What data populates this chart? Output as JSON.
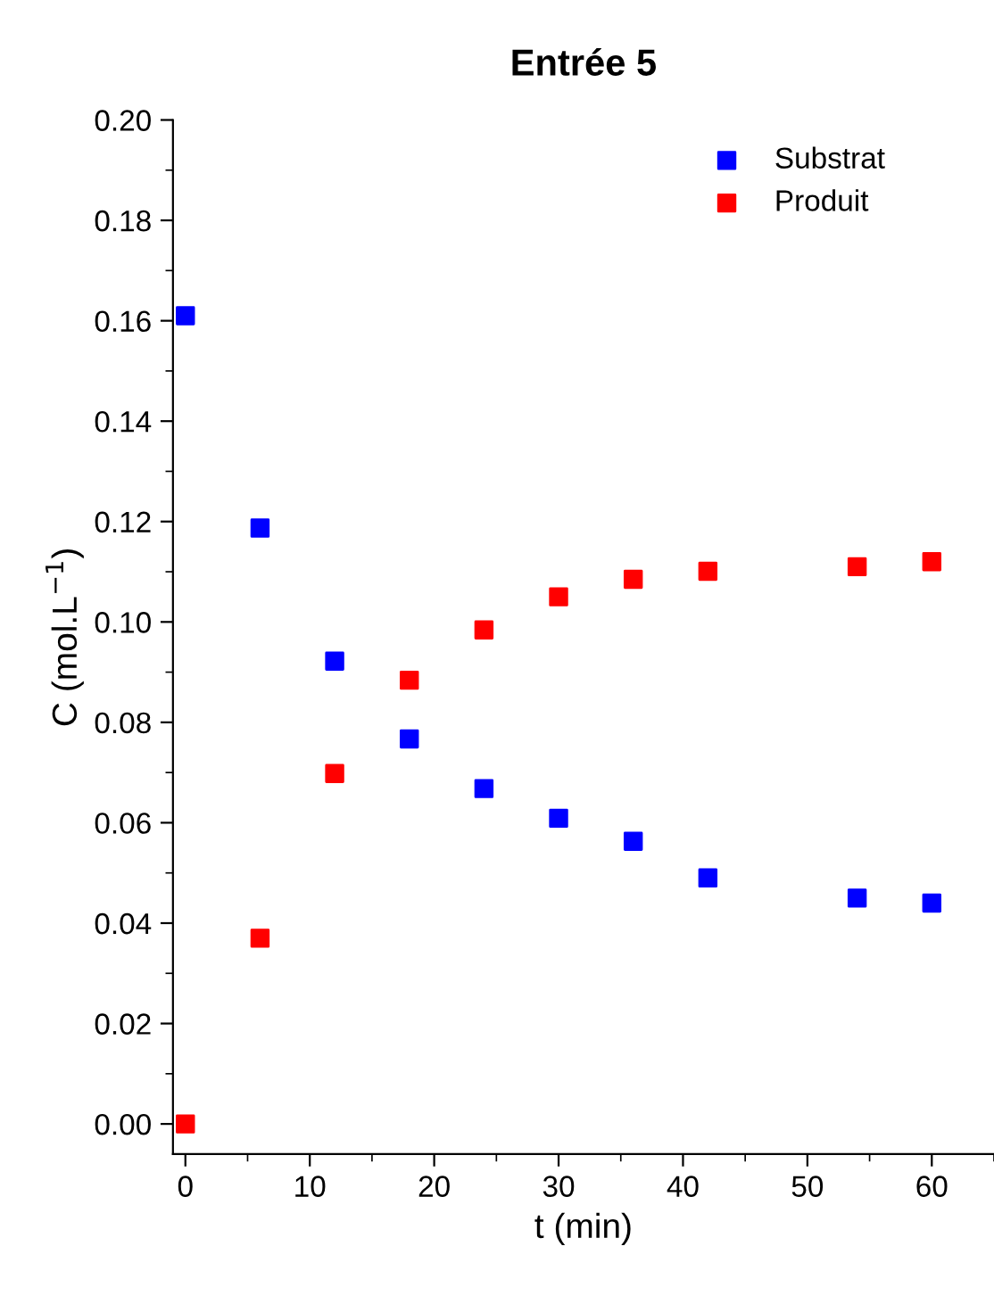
{
  "chart_data": {
    "type": "scatter",
    "title": "Entrée 5",
    "xlabel": "t (min)",
    "ylabel": "C (mol.L$^{−1}$)",
    "x": [
      0,
      6,
      12,
      18,
      24,
      30,
      36,
      42,
      54,
      60
    ],
    "series": [
      {
        "name": "Substrat",
        "color": "#0000ff",
        "values": [
          0.161,
          0.1187,
          0.0922,
          0.0767,
          0.0668,
          0.0609,
          0.0563,
          0.049,
          0.045,
          0.044
        ]
      },
      {
        "name": "Produit",
        "color": "#ff0000",
        "values": [
          0.0,
          0.037,
          0.0698,
          0.0884,
          0.0984,
          0.105,
          0.1085,
          0.1101,
          0.111,
          0.112
        ]
      }
    ],
    "xlim": [
      -1,
      65
    ],
    "ylim": [
      -0.006,
      0.2
    ],
    "xticks": [
      0,
      10,
      20,
      30,
      40,
      50,
      60
    ],
    "yticks": [
      {
        "value": 0,
        "label": "0.00"
      },
      {
        "value": 0.02,
        "label": "0.02"
      },
      {
        "value": 0.04,
        "label": "0.04"
      },
      {
        "value": 0.06,
        "label": "0.06"
      },
      {
        "value": 0.08,
        "label": "0.08"
      },
      {
        "value": 0.1,
        "label": "0.10"
      },
      {
        "value": 0.12,
        "label": "0.12"
      },
      {
        "value": 0.14,
        "label": "0.14"
      },
      {
        "value": 0.16,
        "label": "0.16"
      },
      {
        "value": 0.18,
        "label": "0.18"
      },
      {
        "value": 0.2,
        "label": "0.20"
      }
    ],
    "marker": "square",
    "legend": "top right",
    "grid": false
  }
}
